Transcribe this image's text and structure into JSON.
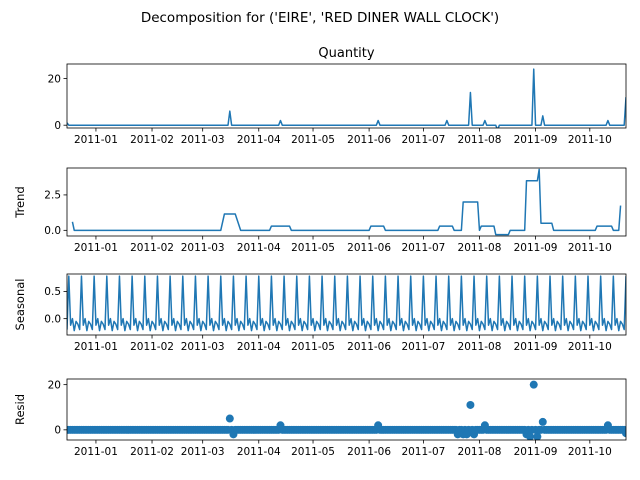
{
  "figure": {
    "suptitle": "Decomposition for ('EIRE', 'RED DINER WALL CLOCK')"
  },
  "colors": {
    "series": "#1f77b4",
    "axis": "#000000",
    "background": "#ffffff"
  },
  "chart_data": [
    {
      "type": "line",
      "title": "Quantity",
      "ylabel": "",
      "xlabel": "",
      "x_range": [
        "2010-12-16",
        "2011-10-21"
      ],
      "ylim": [
        -1.2,
        26.2
      ],
      "yticks": [
        0,
        20
      ],
      "xtick_dates": [
        "2011-01-01",
        "2011-02-01",
        "2011-03-01",
        "2011-04-01",
        "2011-05-01",
        "2011-06-01",
        "2011-07-01",
        "2011-08-01",
        "2011-09-01",
        "2011-10-01"
      ],
      "xtick_labels": [
        "2011-01",
        "2011-02",
        "2011-03",
        "2011-04",
        "2011-05",
        "2011-06",
        "2011-07",
        "2011-08",
        "2011-09",
        "2011-10"
      ],
      "baseline": 0,
      "events": [
        {
          "x": "2010-12-16",
          "y": 1
        },
        {
          "x": "2011-03-16",
          "y": 6
        },
        {
          "x": "2011-04-13",
          "y": 2
        },
        {
          "x": "2011-06-06",
          "y": 2
        },
        {
          "x": "2011-07-14",
          "y": 2
        },
        {
          "x": "2011-07-27",
          "y": 14
        },
        {
          "x": "2011-08-04",
          "y": 2
        },
        {
          "x": "2011-08-11",
          "y": -2
        },
        {
          "x": "2011-08-31",
          "y": 24
        },
        {
          "x": "2011-09-05",
          "y": 4
        },
        {
          "x": "2011-10-11",
          "y": 2
        },
        {
          "x": "2011-10-21",
          "y": 12
        }
      ]
    },
    {
      "type": "line",
      "title": "",
      "ylabel": "Trend",
      "xlabel": "",
      "x_range": [
        "2010-12-16",
        "2011-10-21"
      ],
      "ylim": [
        -0.4,
        4.4
      ],
      "yticks": [
        0.0,
        2.5
      ],
      "ytick_labels": [
        "0.0",
        "2.5"
      ],
      "xtick_dates": [
        "2011-01-01",
        "2011-02-01",
        "2011-03-01",
        "2011-04-01",
        "2011-05-01",
        "2011-06-01",
        "2011-07-01",
        "2011-08-01",
        "2011-09-01",
        "2011-10-01"
      ],
      "xtick_labels": [
        "2011-01",
        "2011-02",
        "2011-03",
        "2011-04",
        "2011-05",
        "2011-06",
        "2011-07",
        "2011-08",
        "2011-09",
        "2011-10"
      ],
      "points": [
        [
          "2010-12-19",
          0.6
        ],
        [
          "2010-12-20",
          0.0
        ],
        [
          "2011-03-11",
          0.0
        ],
        [
          "2011-03-13",
          1.15
        ],
        [
          "2011-03-19",
          1.15
        ],
        [
          "2011-03-22",
          0.0
        ],
        [
          "2011-04-07",
          0.0
        ],
        [
          "2011-04-08",
          0.3
        ],
        [
          "2011-04-18",
          0.3
        ],
        [
          "2011-04-19",
          0.0
        ],
        [
          "2011-06-01",
          0.0
        ],
        [
          "2011-06-02",
          0.3
        ],
        [
          "2011-06-09",
          0.3
        ],
        [
          "2011-06-10",
          0.0
        ],
        [
          "2011-07-09",
          0.0
        ],
        [
          "2011-07-10",
          0.3
        ],
        [
          "2011-07-17",
          0.3
        ],
        [
          "2011-07-18",
          0.0
        ],
        [
          "2011-07-22",
          0.0
        ],
        [
          "2011-07-23",
          2.0
        ],
        [
          "2011-07-31",
          2.0
        ],
        [
          "2011-08-01",
          0.0
        ],
        [
          "2011-08-02",
          0.3
        ],
        [
          "2011-08-09",
          0.3
        ],
        [
          "2011-08-10",
          -0.3
        ],
        [
          "2011-08-17",
          -0.3
        ],
        [
          "2011-08-18",
          0.0
        ],
        [
          "2011-08-26",
          0.0
        ],
        [
          "2011-08-27",
          3.5
        ],
        [
          "2011-09-02",
          3.5
        ],
        [
          "2011-09-03",
          4.3
        ],
        [
          "2011-09-04",
          0.5
        ],
        [
          "2011-09-10",
          0.5
        ],
        [
          "2011-09-11",
          0.0
        ],
        [
          "2011-10-04",
          0.0
        ],
        [
          "2011-10-05",
          0.3
        ],
        [
          "2011-10-13",
          0.3
        ],
        [
          "2011-10-14",
          0.0
        ],
        [
          "2011-10-17",
          0.0
        ],
        [
          "2011-10-18",
          1.75
        ]
      ]
    },
    {
      "type": "line",
      "title": "",
      "ylabel": "Seasonal",
      "xlabel": "",
      "x_range": [
        "2010-12-16",
        "2011-10-21"
      ],
      "ylim": [
        -0.3,
        0.82
      ],
      "yticks": [
        0.0,
        0.5
      ],
      "ytick_labels": [
        "0.0",
        "0.5"
      ],
      "xtick_dates": [
        "2011-01-01",
        "2011-02-01",
        "2011-03-01",
        "2011-04-01",
        "2011-05-01",
        "2011-06-01",
        "2011-07-01",
        "2011-08-01",
        "2011-09-01",
        "2011-10-01"
      ],
      "xtick_labels": [
        "2011-01",
        "2011-02",
        "2011-03",
        "2011-04",
        "2011-05",
        "2011-06",
        "2011-07",
        "2011-08",
        "2011-09",
        "2011-10"
      ],
      "period_days": 7,
      "pattern": [
        -0.2,
        0.78,
        -0.12,
        0.0,
        -0.22,
        -0.05,
        -0.1
      ]
    },
    {
      "type": "scatter",
      "title": "",
      "ylabel": "Resid",
      "xlabel": "",
      "x_range": [
        "2010-12-16",
        "2011-10-21"
      ],
      "ylim": [
        -4.5,
        22.5
      ],
      "yticks": [
        0,
        20
      ],
      "xtick_dates": [
        "2011-01-01",
        "2011-02-01",
        "2011-03-01",
        "2011-04-01",
        "2011-05-01",
        "2011-06-01",
        "2011-07-01",
        "2011-08-01",
        "2011-09-01",
        "2011-10-01"
      ],
      "xtick_labels": [
        "2011-01",
        "2011-02",
        "2011-03",
        "2011-04",
        "2011-05",
        "2011-06",
        "2011-07",
        "2011-08",
        "2011-09",
        "2011-10"
      ],
      "baseline": 0,
      "outliers": [
        {
          "x": "2011-03-16",
          "y": 5
        },
        {
          "x": "2011-03-18",
          "y": -2
        },
        {
          "x": "2011-04-13",
          "y": 2
        },
        {
          "x": "2011-06-06",
          "y": 2
        },
        {
          "x": "2011-07-20",
          "y": -2
        },
        {
          "x": "2011-07-23",
          "y": -2
        },
        {
          "x": "2011-07-25",
          "y": -2
        },
        {
          "x": "2011-07-27",
          "y": 11
        },
        {
          "x": "2011-07-29",
          "y": -2
        },
        {
          "x": "2011-08-04",
          "y": 2
        },
        {
          "x": "2011-08-27",
          "y": -2
        },
        {
          "x": "2011-08-29",
          "y": -3
        },
        {
          "x": "2011-08-31",
          "y": 20
        },
        {
          "x": "2011-09-02",
          "y": -3
        },
        {
          "x": "2011-09-05",
          "y": 3.5
        },
        {
          "x": "2011-10-11",
          "y": 2
        },
        {
          "x": "2011-10-21",
          "y": -1.5
        }
      ]
    }
  ]
}
